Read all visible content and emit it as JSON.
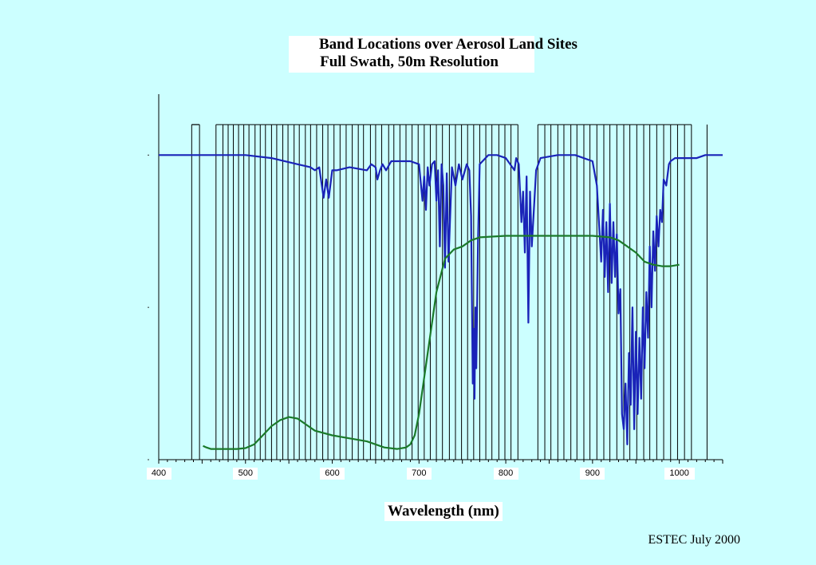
{
  "chart_data": {
    "type": "line",
    "title": "Band Locations over Aerosol Land Sites",
    "subtitle": "Full Swath, 50m Resolution",
    "xlabel": "Wavelength (nm)",
    "ylabel": "",
    "xlim": [
      400,
      1050
    ],
    "ylim": [
      0,
      1.2
    ],
    "x_ticks": [
      400,
      500,
      600,
      700,
      800,
      900,
      1000
    ],
    "grid": false,
    "band_edges": [
      438,
      447,
      466,
      474,
      480,
      486,
      492,
      498,
      504,
      511,
      517,
      523,
      530,
      536,
      543,
      549,
      556,
      562,
      569,
      575,
      582,
      589,
      595,
      602,
      609,
      616,
      623,
      630,
      636,
      644,
      650,
      657,
      665,
      671,
      678,
      685,
      692,
      699,
      706,
      713,
      720,
      727,
      735,
      742,
      749,
      756,
      763,
      770,
      777,
      784,
      792,
      799,
      806,
      814,
      837,
      845,
      852,
      860,
      867,
      875,
      882,
      890,
      897,
      905,
      913,
      920,
      928,
      936,
      943,
      951,
      959,
      966,
      974,
      982,
      990,
      998,
      1006,
      1014,
      1032
    ],
    "band_top": 1.1,
    "series": [
      {
        "color": "#1a23b8",
        "x": [
          400,
          440,
          470,
          500,
          530,
          560,
          575,
          580,
          585,
          588,
          590,
          593,
          596,
          600,
          605,
          620,
          640,
          645,
          650,
          652,
          655,
          658,
          662,
          668,
          675,
          680,
          690,
          700,
          704,
          706,
          708,
          710,
          712,
          715,
          718,
          720,
          722,
          724,
          726,
          728,
          730,
          732,
          734,
          738,
          742,
          746,
          750,
          755,
          758,
          760,
          762,
          763,
          764,
          765,
          766,
          768,
          770,
          780,
          790,
          800,
          810,
          812,
          815,
          818,
          820,
          822,
          824,
          826,
          828,
          830,
          835,
          840,
          860,
          880,
          900,
          905,
          910,
          912,
          914,
          916,
          918,
          920,
          922,
          924,
          926,
          928,
          930,
          932,
          934,
          936,
          938,
          940,
          942,
          944,
          946,
          948,
          950,
          952,
          954,
          956,
          958,
          960,
          962,
          964,
          966,
          968,
          970,
          972,
          974,
          976,
          978,
          980,
          982,
          985,
          988,
          990,
          995,
          1000,
          1010,
          1020,
          1030,
          1040,
          1050
        ],
        "y": [
          1.0,
          1.0,
          1.0,
          1.0,
          0.99,
          0.97,
          0.96,
          0.95,
          0.96,
          0.9,
          0.86,
          0.92,
          0.86,
          0.95,
          0.95,
          0.96,
          0.95,
          0.97,
          0.96,
          0.92,
          0.95,
          0.97,
          0.95,
          0.98,
          0.98,
          0.98,
          0.98,
          0.97,
          0.85,
          0.93,
          0.82,
          0.96,
          0.9,
          0.97,
          0.98,
          0.85,
          0.95,
          0.7,
          0.97,
          0.9,
          0.63,
          0.94,
          0.65,
          0.96,
          0.9,
          0.97,
          0.92,
          0.97,
          0.95,
          0.8,
          0.25,
          0.43,
          0.2,
          0.5,
          0.3,
          0.72,
          0.97,
          1.0,
          1.0,
          0.99,
          0.95,
          0.99,
          0.97,
          0.78,
          0.88,
          0.68,
          0.93,
          0.45,
          0.88,
          0.7,
          0.95,
          0.99,
          1.0,
          1.0,
          0.98,
          0.9,
          0.65,
          0.82,
          0.6,
          0.78,
          0.55,
          0.84,
          0.58,
          0.78,
          0.6,
          0.74,
          0.48,
          0.56,
          0.15,
          0.1,
          0.25,
          0.05,
          0.35,
          0.18,
          0.5,
          0.1,
          0.42,
          0.15,
          0.4,
          0.2,
          0.5,
          0.3,
          0.55,
          0.4,
          0.7,
          0.5,
          0.75,
          0.62,
          0.8,
          0.7,
          0.82,
          0.78,
          0.92,
          0.9,
          0.97,
          0.98,
          0.99,
          0.99,
          0.99,
          0.99,
          1.0,
          1.0,
          1.0
        ]
      },
      {
        "color": "#1b7a2a",
        "x": [
          451,
          455,
          460,
          470,
          480,
          490,
          500,
          510,
          520,
          530,
          540,
          550,
          560,
          570,
          580,
          600,
          620,
          640,
          660,
          675,
          685,
          690,
          695,
          700,
          710,
          720,
          730,
          740,
          750,
          760,
          770,
          800,
          850,
          900,
          920,
          930,
          940,
          950,
          960,
          970,
          980,
          990,
          1000
        ],
        "y": [
          0.045,
          0.04,
          0.035,
          0.035,
          0.035,
          0.035,
          0.038,
          0.05,
          0.08,
          0.11,
          0.13,
          0.14,
          0.135,
          0.115,
          0.095,
          0.08,
          0.07,
          0.06,
          0.04,
          0.035,
          0.04,
          0.05,
          0.08,
          0.15,
          0.35,
          0.55,
          0.66,
          0.69,
          0.7,
          0.72,
          0.73,
          0.735,
          0.735,
          0.735,
          0.73,
          0.72,
          0.7,
          0.68,
          0.65,
          0.64,
          0.635,
          0.635,
          0.64
        ]
      }
    ]
  },
  "footer": {
    "credit": "ESTEC July 2000"
  }
}
